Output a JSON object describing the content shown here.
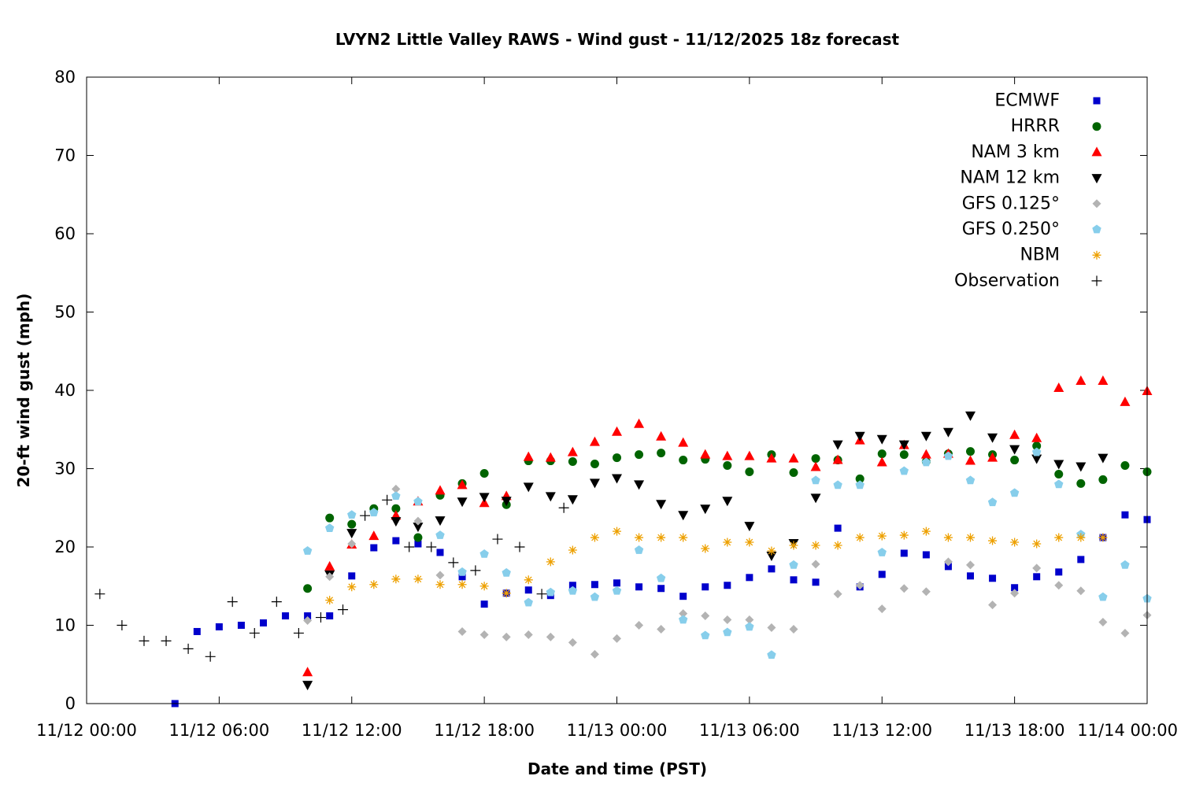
{
  "chart_data": {
    "type": "scatter",
    "title": "LVYN2 Little Valley RAWS - Wind gust - 11/12/2025 18z forecast",
    "xlabel": "Date and time (PST)",
    "ylabel": "20-ft wind gust (mph)",
    "xlim": [
      0,
      48
    ],
    "ylim": [
      0,
      80
    ],
    "grid": false,
    "x_ticks": [
      {
        "value": 0,
        "label": "11/12 00:00"
      },
      {
        "value": 6,
        "label": "11/12 06:00"
      },
      {
        "value": 12,
        "label": "11/12 12:00"
      },
      {
        "value": 18,
        "label": "11/12 18:00"
      },
      {
        "value": 24,
        "label": "11/13 00:00"
      },
      {
        "value": 30,
        "label": "11/13 06:00"
      },
      {
        "value": 36,
        "label": "11/13 12:00"
      },
      {
        "value": 42,
        "label": "11/13 18:00"
      },
      {
        "value": 48,
        "label": "11/14 00:00"
      }
    ],
    "y_ticks": [
      0,
      10,
      20,
      30,
      40,
      50,
      60,
      70,
      80
    ],
    "series": [
      {
        "name": "ECMWF",
        "marker": "square",
        "color": "#0000cc",
        "points": [
          [
            4,
            0
          ],
          [
            5,
            9.2
          ],
          [
            6,
            9.8
          ],
          [
            7,
            10.0
          ],
          [
            8,
            10.3
          ],
          [
            9,
            11.2
          ],
          [
            10,
            11.2
          ],
          [
            11,
            11.2
          ],
          [
            12,
            16.3
          ],
          [
            13,
            19.9
          ],
          [
            14,
            20.8
          ],
          [
            15,
            20.4
          ],
          [
            16,
            19.3
          ],
          [
            17,
            16.2
          ],
          [
            18,
            12.7
          ],
          [
            19,
            14.1
          ],
          [
            20,
            14.5
          ],
          [
            21,
            13.8
          ],
          [
            22,
            15.1
          ],
          [
            23,
            15.2
          ],
          [
            24,
            15.4
          ],
          [
            25,
            14.9
          ],
          [
            26,
            14.7
          ],
          [
            27,
            13.7
          ],
          [
            28,
            14.9
          ],
          [
            29,
            15.1
          ],
          [
            30,
            16.1
          ],
          [
            31,
            17.2
          ],
          [
            32,
            15.8
          ],
          [
            33,
            15.5
          ],
          [
            34,
            22.4
          ],
          [
            35,
            14.9
          ],
          [
            36,
            16.5
          ],
          [
            37,
            19.2
          ],
          [
            38,
            19.0
          ],
          [
            39,
            17.5
          ],
          [
            40,
            16.3
          ],
          [
            41,
            16.0
          ],
          [
            42,
            14.8
          ],
          [
            43,
            16.2
          ],
          [
            44,
            16.8
          ],
          [
            45,
            18.4
          ],
          [
            46,
            21.2
          ],
          [
            47,
            24.1
          ],
          [
            48,
            23.5
          ]
        ]
      },
      {
        "name": "HRRR",
        "marker": "circle",
        "color": "#006400",
        "points": [
          [
            10,
            14.7
          ],
          [
            11,
            23.7
          ],
          [
            12,
            22.9
          ],
          [
            13,
            24.9
          ],
          [
            14,
            24.9
          ],
          [
            15,
            21.2
          ],
          [
            16,
            26.6
          ],
          [
            17,
            28.1
          ],
          [
            18,
            29.4
          ],
          [
            19,
            25.4
          ],
          [
            20,
            31.0
          ],
          [
            21,
            31.0
          ],
          [
            22,
            30.9
          ],
          [
            23,
            30.6
          ],
          [
            24,
            31.4
          ],
          [
            25,
            31.8
          ],
          [
            26,
            32.0
          ],
          [
            27,
            31.1
          ],
          [
            28,
            31.2
          ],
          [
            29,
            30.4
          ],
          [
            30,
            29.6
          ],
          [
            31,
            31.8
          ],
          [
            32,
            29.5
          ],
          [
            33,
            31.3
          ],
          [
            34,
            31.1
          ],
          [
            35,
            28.7
          ],
          [
            36,
            31.9
          ],
          [
            37,
            31.8
          ],
          [
            38,
            30.9
          ],
          [
            39,
            31.9
          ],
          [
            40,
            32.2
          ],
          [
            41,
            31.8
          ],
          [
            42,
            31.1
          ],
          [
            43,
            32.9
          ],
          [
            44,
            29.3
          ],
          [
            45,
            28.1
          ],
          [
            46,
            28.6
          ],
          [
            47,
            30.4
          ],
          [
            48,
            29.6
          ]
        ]
      },
      {
        "name": "NAM 3 km",
        "marker": "triangle-up",
        "color": "#ff0000",
        "points": [
          [
            10,
            4.0
          ],
          [
            11,
            17.5
          ],
          [
            12,
            20.3
          ],
          [
            13,
            21.4
          ],
          [
            14,
            24.0
          ],
          [
            15,
            25.8
          ],
          [
            16,
            27.2
          ],
          [
            17,
            27.9
          ],
          [
            18,
            25.6
          ],
          [
            19,
            26.5
          ],
          [
            20,
            31.5
          ],
          [
            21,
            31.4
          ],
          [
            22,
            32.1
          ],
          [
            23,
            33.4
          ],
          [
            24,
            34.7
          ],
          [
            25,
            35.7
          ],
          [
            26,
            34.1
          ],
          [
            27,
            33.3
          ],
          [
            28,
            31.8
          ],
          [
            29,
            31.6
          ],
          [
            30,
            31.6
          ],
          [
            31,
            31.3
          ],
          [
            32,
            31.3
          ],
          [
            33,
            30.2
          ],
          [
            34,
            31.1
          ],
          [
            35,
            33.6
          ],
          [
            36,
            30.8
          ],
          [
            37,
            33.0
          ],
          [
            38,
            31.8
          ],
          [
            39,
            31.9
          ],
          [
            40,
            31.0
          ],
          [
            41,
            31.4
          ],
          [
            42,
            34.3
          ],
          [
            43,
            33.9
          ],
          [
            44,
            40.3
          ],
          [
            45,
            41.2
          ],
          [
            46,
            41.2
          ],
          [
            47,
            38.5
          ],
          [
            48,
            39.9
          ]
        ]
      },
      {
        "name": "NAM 12 km",
        "marker": "triangle-down",
        "color": "#000000",
        "points": [
          [
            10,
            2.4
          ],
          [
            11,
            16.5
          ],
          [
            12,
            21.8
          ],
          [
            14,
            23.3
          ],
          [
            15,
            22.6
          ],
          [
            16,
            23.4
          ],
          [
            17,
            25.8
          ],
          [
            18,
            26.4
          ],
          [
            19,
            25.9
          ],
          [
            20,
            27.7
          ],
          [
            21,
            26.5
          ],
          [
            22,
            26.1
          ],
          [
            23,
            28.2
          ],
          [
            24,
            28.8
          ],
          [
            25,
            28.0
          ],
          [
            26,
            25.5
          ],
          [
            27,
            24.1
          ],
          [
            28,
            24.9
          ],
          [
            29,
            25.9
          ],
          [
            30,
            22.7
          ],
          [
            31,
            18.9
          ],
          [
            32,
            20.5
          ],
          [
            33,
            26.3
          ],
          [
            34,
            33.1
          ],
          [
            35,
            34.2
          ],
          [
            36,
            33.8
          ],
          [
            37,
            33.1
          ],
          [
            38,
            34.2
          ],
          [
            39,
            34.7
          ],
          [
            40,
            36.8
          ],
          [
            41,
            34.0
          ],
          [
            42,
            32.5
          ],
          [
            43,
            31.3
          ],
          [
            44,
            30.6
          ],
          [
            45,
            30.3
          ],
          [
            46,
            31.4
          ]
        ]
      },
      {
        "name": "GFS 0.125°",
        "marker": "diamond",
        "color": "#b3b3b3",
        "points": [
          [
            10,
            10.6
          ],
          [
            11,
            16.2
          ],
          [
            12,
            20.4
          ],
          [
            14,
            27.4
          ],
          [
            15,
            23.3
          ],
          [
            16,
            16.4
          ],
          [
            17,
            9.2
          ],
          [
            18,
            8.8
          ],
          [
            19,
            8.5
          ],
          [
            20,
            8.8
          ],
          [
            21,
            8.5
          ],
          [
            22,
            7.8
          ],
          [
            23,
            6.3
          ],
          [
            24,
            8.3
          ],
          [
            25,
            10.0
          ],
          [
            26,
            9.5
          ],
          [
            27,
            11.5
          ],
          [
            28,
            11.2
          ],
          [
            29,
            10.7
          ],
          [
            30,
            10.7
          ],
          [
            31,
            9.7
          ],
          [
            32,
            9.5
          ],
          [
            33,
            17.8
          ],
          [
            34,
            14.0
          ],
          [
            35,
            15.1
          ],
          [
            36,
            12.1
          ],
          [
            37,
            14.7
          ],
          [
            38,
            14.3
          ],
          [
            39,
            18.1
          ],
          [
            40,
            17.7
          ],
          [
            41,
            12.6
          ],
          [
            42,
            14.1
          ],
          [
            43,
            17.3
          ],
          [
            44,
            15.1
          ],
          [
            45,
            14.4
          ],
          [
            46,
            10.4
          ],
          [
            47,
            9.0
          ],
          [
            48,
            11.3
          ]
        ]
      },
      {
        "name": "GFS 0.250°",
        "marker": "pentagon",
        "color": "#87ceeb",
        "points": [
          [
            10,
            19.5
          ],
          [
            11,
            22.4
          ],
          [
            12,
            24.1
          ],
          [
            13,
            24.4
          ],
          [
            14,
            26.5
          ],
          [
            15,
            25.8
          ],
          [
            16,
            21.5
          ],
          [
            17,
            16.8
          ],
          [
            18,
            19.1
          ],
          [
            19,
            16.7
          ],
          [
            20,
            12.9
          ],
          [
            21,
            14.2
          ],
          [
            22,
            14.4
          ],
          [
            23,
            13.6
          ],
          [
            24,
            14.4
          ],
          [
            25,
            19.6
          ],
          [
            26,
            16.0
          ],
          [
            27,
            10.7
          ],
          [
            28,
            8.7
          ],
          [
            29,
            9.1
          ],
          [
            30,
            9.8
          ],
          [
            31,
            6.2
          ],
          [
            32,
            17.7
          ],
          [
            33,
            28.5
          ],
          [
            34,
            27.9
          ],
          [
            35,
            27.9
          ],
          [
            36,
            19.3
          ],
          [
            37,
            29.7
          ],
          [
            38,
            30.8
          ],
          [
            39,
            31.6
          ],
          [
            40,
            28.5
          ],
          [
            41,
            25.7
          ],
          [
            42,
            26.9
          ],
          [
            43,
            32.1
          ],
          [
            44,
            28.0
          ],
          [
            45,
            21.6
          ],
          [
            46,
            13.6
          ],
          [
            47,
            17.7
          ],
          [
            48,
            13.4
          ]
        ]
      },
      {
        "name": "NBM",
        "marker": "asterisk",
        "color": "#eda000",
        "points": [
          [
            11,
            13.2
          ],
          [
            12,
            14.9
          ],
          [
            13,
            15.2
          ],
          [
            14,
            15.9
          ],
          [
            15,
            15.9
          ],
          [
            16,
            15.2
          ],
          [
            17,
            15.2
          ],
          [
            18,
            15.0
          ],
          [
            19,
            14.1
          ],
          [
            20,
            15.8
          ],
          [
            21,
            18.1
          ],
          [
            22,
            19.6
          ],
          [
            23,
            21.2
          ],
          [
            24,
            22.0
          ],
          [
            25,
            21.2
          ],
          [
            26,
            21.2
          ],
          [
            27,
            21.2
          ],
          [
            28,
            19.8
          ],
          [
            29,
            20.6
          ],
          [
            30,
            20.6
          ],
          [
            31,
            19.5
          ],
          [
            32,
            20.2
          ],
          [
            33,
            20.2
          ],
          [
            34,
            20.2
          ],
          [
            35,
            21.2
          ],
          [
            36,
            21.4
          ],
          [
            37,
            21.5
          ],
          [
            38,
            22.0
          ],
          [
            39,
            21.2
          ],
          [
            40,
            21.2
          ],
          [
            41,
            20.8
          ],
          [
            42,
            20.6
          ],
          [
            43,
            20.4
          ],
          [
            44,
            21.2
          ],
          [
            45,
            21.2
          ],
          [
            46,
            21.2
          ]
        ]
      },
      {
        "name": "Observation",
        "marker": "plus",
        "color": "#000000",
        "points": [
          [
            0.6,
            14
          ],
          [
            1.6,
            10
          ],
          [
            2.6,
            8
          ],
          [
            3.6,
            8
          ],
          [
            4.6,
            7
          ],
          [
            5.6,
            6
          ],
          [
            6.6,
            13
          ],
          [
            7.6,
            9
          ],
          [
            8.6,
            13
          ],
          [
            9.6,
            9
          ],
          [
            10.6,
            11
          ],
          [
            11.6,
            12
          ],
          [
            12.6,
            24
          ],
          [
            13.6,
            26
          ],
          [
            14.6,
            20
          ],
          [
            15.6,
            20
          ],
          [
            16.6,
            18
          ],
          [
            17.6,
            17
          ],
          [
            18.6,
            21
          ],
          [
            19.6,
            20
          ],
          [
            20.6,
            14
          ],
          [
            21.6,
            25
          ]
        ]
      }
    ]
  }
}
